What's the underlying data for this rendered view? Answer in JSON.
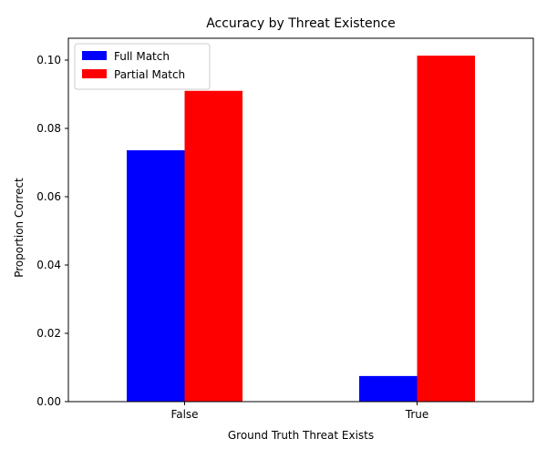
{
  "chart_data": {
    "type": "bar",
    "title": "Accuracy by Threat Existence",
    "xlabel": "Ground Truth Threat Exists",
    "ylabel": "Proportion Correct",
    "categories": [
      "False",
      "True"
    ],
    "series": [
      {
        "name": "Full Match",
        "values": [
          0.0736,
          0.0075
        ],
        "color": "#0000ff"
      },
      {
        "name": "Partial Match",
        "values": [
          0.091,
          0.1013
        ],
        "color": "#ff0000"
      }
    ],
    "ylim": [
      0,
      0.1064
    ],
    "yticks": [
      0.0,
      0.02,
      0.04,
      0.06,
      0.08,
      0.1
    ],
    "ytick_labels": [
      "0.00",
      "0.02",
      "0.04",
      "0.06",
      "0.08",
      "0.10"
    ],
    "grid": false,
    "legend_position": "top-left"
  }
}
